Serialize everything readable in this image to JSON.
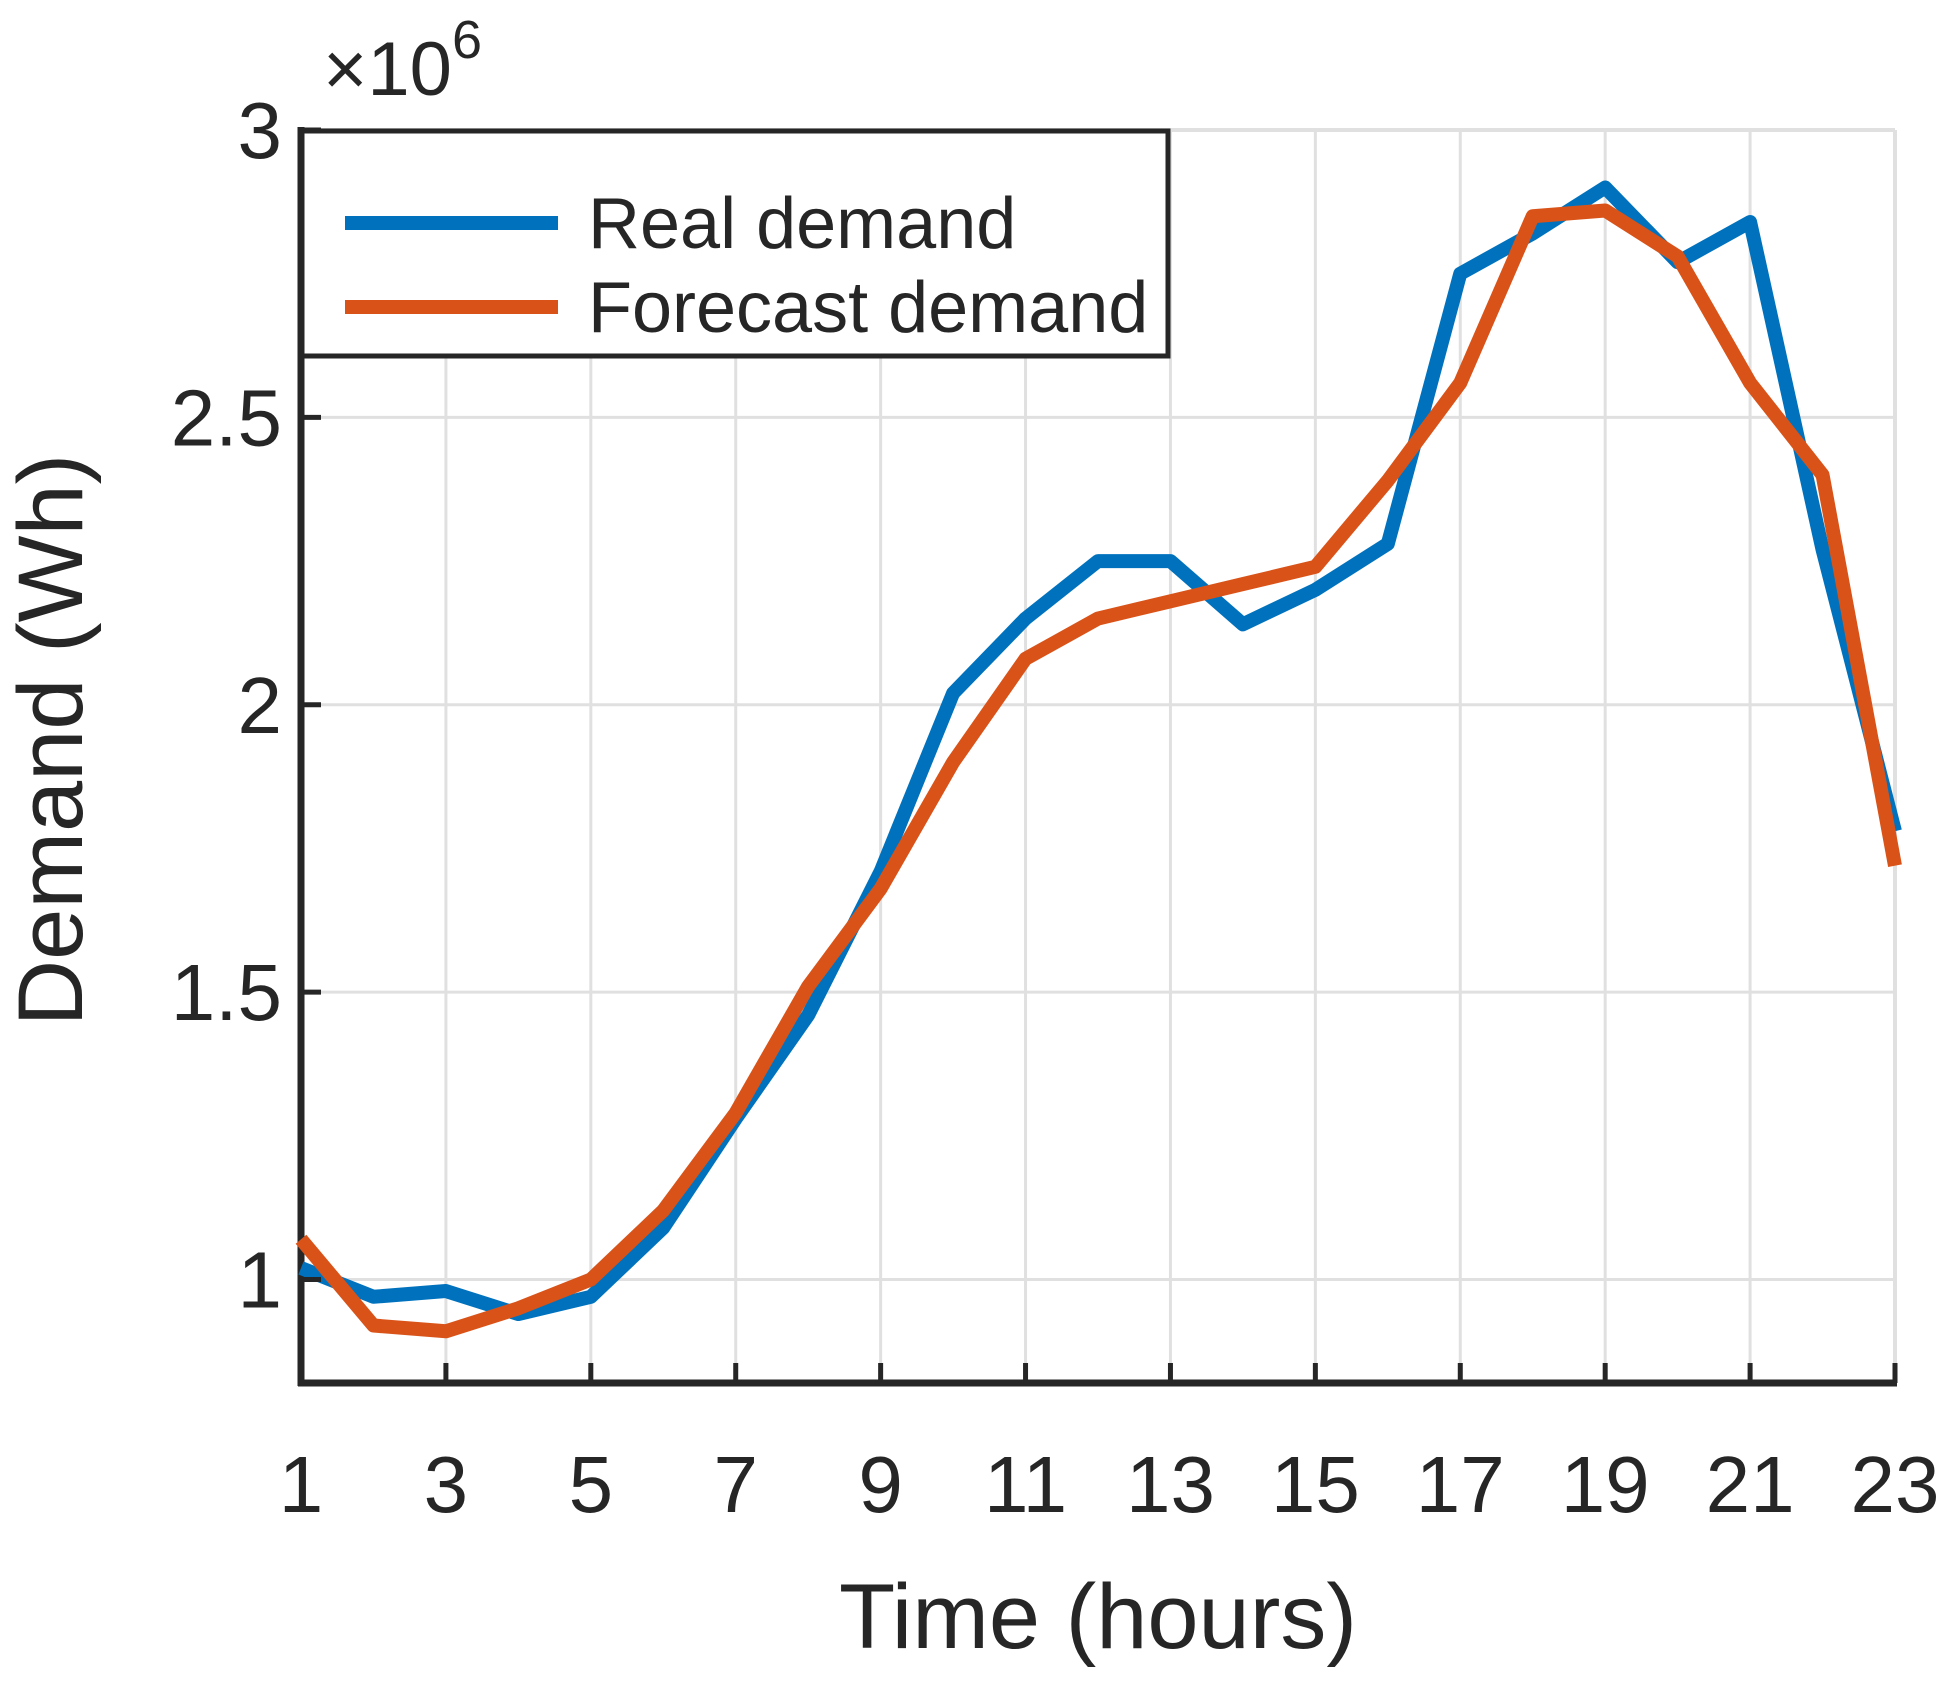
{
  "figure": {
    "background": "#ffffff",
    "axis_color": "#262626",
    "grid_color": "#e0e0e0"
  },
  "chart_data": {
    "type": "line",
    "title": "",
    "xlabel": "Time (hours)",
    "ylabel": "Demand (Wh)",
    "multiplier_base": "×10",
    "multiplier_exponent": "6",
    "x": [
      1,
      2,
      3,
      4,
      5,
      6,
      7,
      8,
      9,
      10,
      11,
      12,
      13,
      14,
      15,
      16,
      17,
      18,
      19,
      20,
      21,
      22,
      23
    ],
    "xticks": [
      1,
      3,
      5,
      7,
      9,
      11,
      13,
      15,
      17,
      19,
      21,
      23
    ],
    "yticks": [
      1,
      1.5,
      2,
      2.5,
      3
    ],
    "xlim": [
      1,
      23
    ],
    "ylim": [
      0.82,
      3
    ],
    "grid": true,
    "legend_position": "top-left",
    "series": [
      {
        "name": "Real demand",
        "color": "#0072BD",
        "values": [
          1.02,
          0.97,
          0.98,
          0.94,
          0.97,
          1.09,
          1.28,
          1.46,
          1.71,
          2.02,
          2.15,
          2.25,
          2.25,
          2.14,
          2.2,
          2.28,
          2.75,
          2.82,
          2.9,
          2.77,
          2.84,
          2.27,
          1.78
        ]
      },
      {
        "name": "Forecast demand",
        "color": "#D95319",
        "values": [
          1.07,
          0.92,
          0.91,
          0.95,
          1.0,
          1.12,
          1.29,
          1.51,
          1.68,
          1.9,
          2.08,
          2.15,
          2.18,
          2.21,
          2.24,
          2.39,
          2.56,
          2.85,
          2.86,
          2.78,
          2.56,
          2.4,
          1.72
        ]
      }
    ]
  }
}
